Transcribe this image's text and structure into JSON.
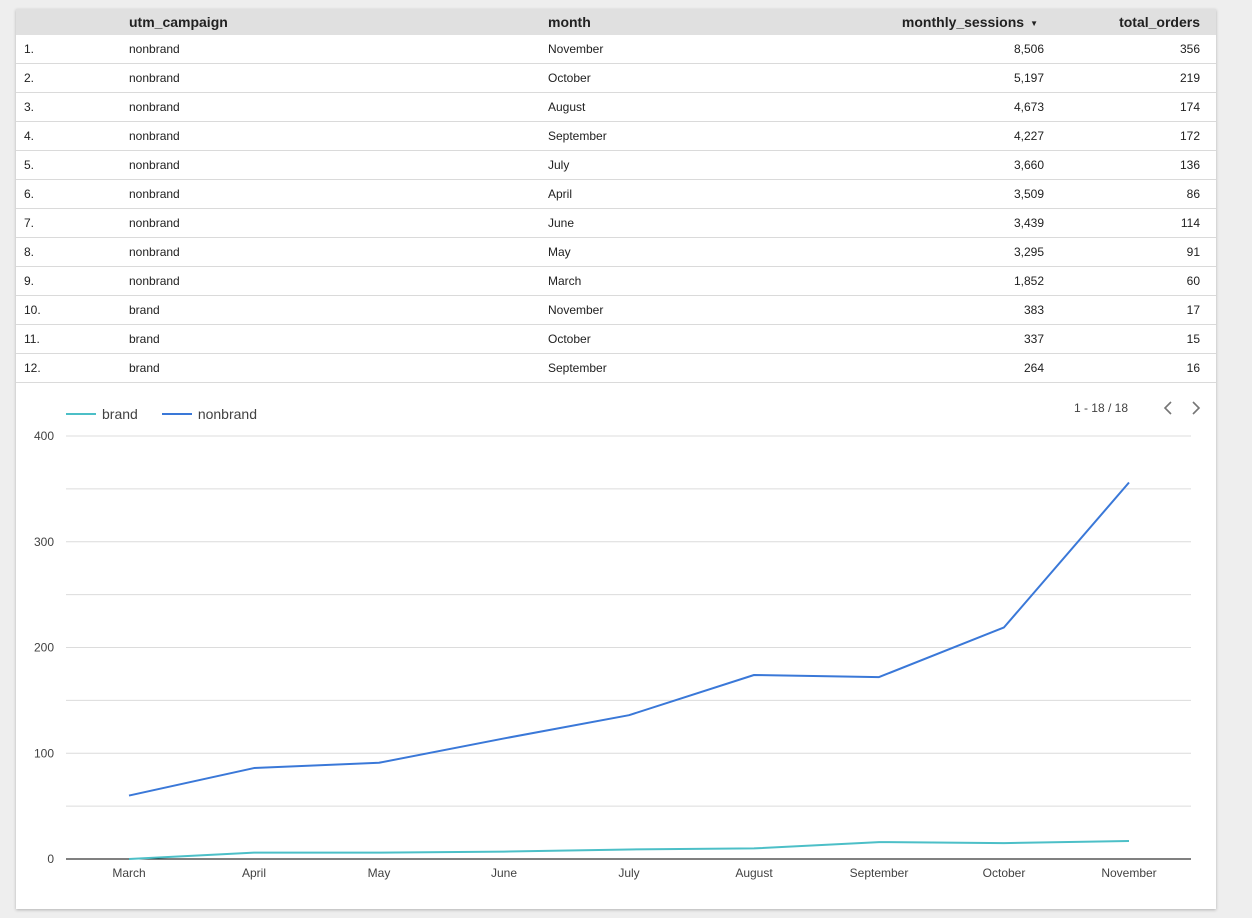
{
  "table": {
    "columns": [
      "utm_campaign",
      "month",
      "monthly_sessions",
      "total_orders"
    ],
    "rows": [
      {
        "idx": "1.",
        "campaign": "nonbrand",
        "month": "November",
        "sessions": "8,506",
        "orders": "356"
      },
      {
        "idx": "2.",
        "campaign": "nonbrand",
        "month": "October",
        "sessions": "5,197",
        "orders": "219"
      },
      {
        "idx": "3.",
        "campaign": "nonbrand",
        "month": "August",
        "sessions": "4,673",
        "orders": "174"
      },
      {
        "idx": "4.",
        "campaign": "nonbrand",
        "month": "September",
        "sessions": "4,227",
        "orders": "172"
      },
      {
        "idx": "5.",
        "campaign": "nonbrand",
        "month": "July",
        "sessions": "3,660",
        "orders": "136"
      },
      {
        "idx": "6.",
        "campaign": "nonbrand",
        "month": "April",
        "sessions": "3,509",
        "orders": "86"
      },
      {
        "idx": "7.",
        "campaign": "nonbrand",
        "month": "June",
        "sessions": "3,439",
        "orders": "114"
      },
      {
        "idx": "8.",
        "campaign": "nonbrand",
        "month": "May",
        "sessions": "3,295",
        "orders": "91"
      },
      {
        "idx": "9.",
        "campaign": "nonbrand",
        "month": "March",
        "sessions": "1,852",
        "orders": "60"
      },
      {
        "idx": "10.",
        "campaign": "brand",
        "month": "November",
        "sessions": "383",
        "orders": "17"
      },
      {
        "idx": "11.",
        "campaign": "brand",
        "month": "October",
        "sessions": "337",
        "orders": "15"
      },
      {
        "idx": "12.",
        "campaign": "brand",
        "month": "September",
        "sessions": "264",
        "orders": "16"
      }
    ],
    "sort_icon": "sort-desc-icon"
  },
  "pager": {
    "text": "1 - 18 / 18",
    "prev_icon": "chevron-left-icon",
    "next_icon": "chevron-right-icon"
  },
  "chart_data": {
    "type": "line",
    "categories": [
      "March",
      "April",
      "May",
      "June",
      "July",
      "August",
      "September",
      "October",
      "November"
    ],
    "series": [
      {
        "name": "brand",
        "color": "#4cbfc7",
        "values": [
          0,
          6,
          6,
          7,
          9,
          10,
          16,
          15,
          17
        ]
      },
      {
        "name": "nonbrand",
        "color": "#3a78d8",
        "values": [
          60,
          86,
          91,
          114,
          136,
          174,
          172,
          219,
          356
        ]
      }
    ],
    "ylim": [
      0,
      400
    ],
    "yticks": [
      0,
      100,
      200,
      300,
      400
    ],
    "grid": true,
    "legend": "top-left"
  }
}
